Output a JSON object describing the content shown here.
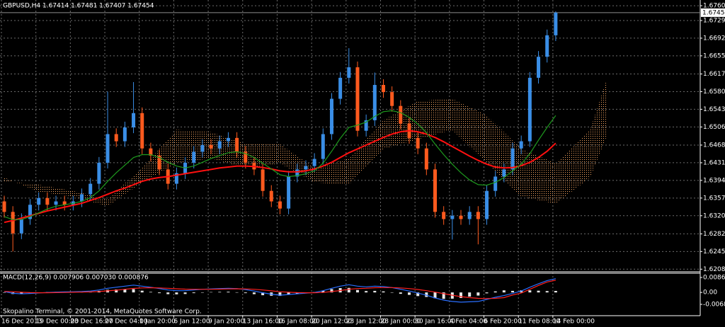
{
  "chart_data": [
    {
      "type": "candlestick",
      "title": "GBPUSD,H4  1.67414 1.67481 1.67407 1.67454",
      "footer": "Skopalino Terminal, © 2001-2014, MetaQuotes Software Corp.",
      "time_labels": [
        "16 Dec 2013",
        "19 Dec 00:00",
        "23 Dec 16:00",
        "27 Dec 04:00",
        "1 Jan 20:00",
        "6 Jan 12:00",
        "9 Jan 20:00",
        "13 Jan 16:00",
        "16 Jan 08:00",
        "20 Jan 12:00",
        "23 Jan 12:00",
        "28 Jan 00:00",
        "30 Jan 16:00",
        "4 Feb 04:00",
        "6 Feb 20:00",
        "11 Feb 08:00",
        "14 Feb 00:00"
      ],
      "up_color": "#3a8ee6",
      "down_color": "#ff5a1e",
      "open": [
        1.635,
        1.6328,
        1.6283,
        1.6313,
        1.6343,
        1.6357,
        1.6343,
        1.635,
        1.6343,
        1.635,
        1.6365,
        1.6387,
        1.6431,
        1.6491,
        1.6476,
        1.6505,
        1.6535,
        1.6461,
        1.6446,
        1.6417,
        1.6387,
        1.6409,
        1.6431,
        1.6454,
        1.6468,
        1.6461,
        1.6476,
        1.6483,
        1.6454,
        1.6431,
        1.6417,
        1.6372,
        1.635,
        1.6335,
        1.6402,
        1.6417,
        1.6424,
        1.6439,
        1.6491,
        1.6565,
        1.6609,
        1.6631,
        1.6498,
        1.652,
        1.6594,
        1.6579,
        1.655,
        1.6513,
        1.6483,
        1.6461,
        1.6417,
        1.6328,
        1.6313,
        1.632,
        1.6313,
        1.6328,
        1.6313,
        1.6372,
        1.6402,
        1.6417,
        1.6461,
        1.6476,
        1.6609,
        1.6653,
        1.6698
      ],
      "high": [
        1.6362,
        1.634,
        1.6325,
        1.6355,
        1.6369,
        1.6369,
        1.6362,
        1.6362,
        1.6362,
        1.6377,
        1.6399,
        1.6443,
        1.658,
        1.6503,
        1.6517,
        1.66,
        1.6547,
        1.6473,
        1.6458,
        1.6429,
        1.6421,
        1.6443,
        1.6466,
        1.648,
        1.648,
        1.6488,
        1.6495,
        1.6495,
        1.6466,
        1.6443,
        1.6429,
        1.6384,
        1.6362,
        1.6414,
        1.6429,
        1.6436,
        1.6451,
        1.6503,
        1.6577,
        1.6621,
        1.6671,
        1.6643,
        1.6532,
        1.662,
        1.6606,
        1.6591,
        1.6562,
        1.6525,
        1.6495,
        1.6473,
        1.6429,
        1.634,
        1.6332,
        1.6332,
        1.634,
        1.634,
        1.6384,
        1.6414,
        1.6429,
        1.6473,
        1.6488,
        1.6621,
        1.6665,
        1.671,
        1.67481
      ],
      "low": [
        1.6316,
        1.6245,
        1.6271,
        1.6301,
        1.6331,
        1.6331,
        1.6331,
        1.6331,
        1.6331,
        1.6338,
        1.6353,
        1.6375,
        1.6419,
        1.6464,
        1.6464,
        1.6493,
        1.6449,
        1.6434,
        1.6405,
        1.6375,
        1.6375,
        1.6397,
        1.6419,
        1.6442,
        1.6449,
        1.6449,
        1.6464,
        1.6442,
        1.6419,
        1.6405,
        1.636,
        1.6338,
        1.6323,
        1.6323,
        1.639,
        1.6405,
        1.6412,
        1.6427,
        1.6479,
        1.6553,
        1.6597,
        1.6486,
        1.6486,
        1.6508,
        1.6567,
        1.6538,
        1.6501,
        1.6471,
        1.6449,
        1.6405,
        1.6316,
        1.6301,
        1.627,
        1.6301,
        1.6301,
        1.626,
        1.6301,
        1.636,
        1.639,
        1.6405,
        1.6449,
        1.6464,
        1.6597,
        1.6641,
        1.6686
      ],
      "close": [
        1.6328,
        1.6283,
        1.6313,
        1.6343,
        1.6357,
        1.6343,
        1.635,
        1.6343,
        1.635,
        1.6365,
        1.6387,
        1.6431,
        1.6491,
        1.6476,
        1.6505,
        1.6535,
        1.6461,
        1.6446,
        1.6417,
        1.6387,
        1.6409,
        1.6431,
        1.6454,
        1.6468,
        1.6461,
        1.6476,
        1.6483,
        1.6454,
        1.6431,
        1.6417,
        1.6372,
        1.635,
        1.6335,
        1.6402,
        1.6417,
        1.6424,
        1.6439,
        1.6491,
        1.6565,
        1.6609,
        1.6631,
        1.6498,
        1.652,
        1.6594,
        1.6579,
        1.655,
        1.6513,
        1.6483,
        1.6461,
        1.6417,
        1.6328,
        1.6313,
        1.632,
        1.6313,
        1.6328,
        1.6313,
        1.6372,
        1.6402,
        1.6417,
        1.6461,
        1.6476,
        1.6609,
        1.6653,
        1.6698,
        1.67454
      ],
      "moving_averages": [
        {
          "color": "#ff1010",
          "values": [
            1.6306,
            1.631,
            1.6315,
            1.632,
            1.6325,
            1.633,
            1.6334,
            1.6338,
            1.6342,
            1.6346,
            1.6352,
            1.6358,
            1.6365,
            1.6372,
            1.6378,
            1.6385,
            1.6392,
            1.6397,
            1.64,
            1.6402,
            1.6405,
            1.6408,
            1.6411,
            1.6414,
            1.6417,
            1.642,
            1.6422,
            1.6424,
            1.6424,
            1.6423,
            1.6421,
            1.6418,
            1.6414,
            1.6412,
            1.6412,
            1.6414,
            1.6418,
            1.6424,
            1.6432,
            1.6442,
            1.6452,
            1.646,
            1.6468,
            1.6476,
            1.6484,
            1.6491,
            1.6496,
            1.6498,
            1.6496,
            1.6491,
            1.6484,
            1.6475,
            1.6465,
            1.6455,
            1.6445,
            1.6436,
            1.6428,
            1.6422,
            1.642,
            1.6421,
            1.6425,
            1.6432,
            1.6442,
            1.6455,
            1.6472
          ]
        },
        {
          "color": "#1e9a1e",
          "values": [
            1.6318,
            1.6312,
            1.6312,
            1.6318,
            1.6326,
            1.6334,
            1.634,
            1.6343,
            1.6346,
            1.635,
            1.6358,
            1.6372,
            1.6392,
            1.641,
            1.6426,
            1.6442,
            1.6448,
            1.6448,
            1.6442,
            1.6432,
            1.6424,
            1.642,
            1.6424,
            1.6432,
            1.644,
            1.6446,
            1.6452,
            1.6454,
            1.645,
            1.6442,
            1.643,
            1.6418,
            1.6406,
            1.6402,
            1.6404,
            1.6408,
            1.6414,
            1.643,
            1.6455,
            1.6482,
            1.6505,
            1.651,
            1.6516,
            1.6528,
            1.6538,
            1.654,
            1.6536,
            1.6526,
            1.6512,
            1.6494,
            1.647,
            1.6448,
            1.6428,
            1.641,
            1.6395,
            1.6385,
            1.6384,
            1.639,
            1.64,
            1.6414,
            1.6428,
            1.645,
            1.6478,
            1.6505,
            1.653
          ]
        }
      ],
      "cloud": {
        "color": "#f4a460",
        "x": [
          0,
          4,
          8,
          12,
          16,
          20,
          24,
          28,
          32,
          36,
          40,
          44,
          48,
          52,
          56,
          60,
          64,
          68,
          70
        ],
        "span_a": [
          1.6392,
          1.6385,
          1.6372,
          1.6355,
          1.642,
          1.65,
          1.6495,
          1.647,
          1.647,
          1.642,
          1.644,
          1.652,
          1.656,
          1.6565,
          1.653,
          1.646,
          1.643,
          1.65,
          1.661
        ],
        "span_b": [
          1.64,
          1.637,
          1.636,
          1.634,
          1.639,
          1.643,
          1.644,
          1.642,
          1.643,
          1.639,
          1.6385,
          1.646,
          1.648,
          1.65,
          1.643,
          1.636,
          1.6345,
          1.64,
          1.649
        ]
      },
      "last_price": 1.67454,
      "ylim": [
        1.6204,
        1.6769
      ],
      "yticks": [
        {
          "value": 1.676,
          "label": "1.67600"
        },
        {
          "value": 1.6729,
          "label": "1.67290"
        },
        {
          "value": 1.6692,
          "label": "1.66920"
        },
        {
          "value": 1.6655,
          "label": "1.66550"
        },
        {
          "value": 1.6617,
          "label": "1.66170"
        },
        {
          "value": 1.658,
          "label": "1.65800"
        },
        {
          "value": 1.6543,
          "label": "1.65430"
        },
        {
          "value": 1.6506,
          "label": "1.65060"
        },
        {
          "value": 1.6468,
          "label": "1.64680"
        },
        {
          "value": 1.6431,
          "label": "1.64310"
        },
        {
          "value": 1.6394,
          "label": "1.63940"
        },
        {
          "value": 1.6357,
          "label": "1.63570"
        },
        {
          "value": 1.632,
          "label": "1.63200"
        },
        {
          "value": 1.6282,
          "label": "1.62820"
        },
        {
          "value": 1.6245,
          "label": "1.62450"
        },
        {
          "value": 1.6208,
          "label": "1.62080"
        }
      ],
      "grid": true
    },
    {
      "type": "macd",
      "title": "MACD(12,26,9) 0.007906 0.007030 0.000876",
      "histogram_color": "#e8e8e8",
      "main_color": "#2a6fff",
      "signal_color": "#ff2020",
      "histogram": [
        -0.0001,
        -0.0009,
        -0.0009,
        -0.0005,
        -0.0001,
        0.0002,
        0.0003,
        0.0003,
        0.0003,
        0.0003,
        0.0005,
        0.0009,
        0.0015,
        0.0017,
        0.0018,
        0.0019,
        0.001,
        0.0003,
        -0.0004,
        -0.001,
        -0.0011,
        -0.0009,
        -0.0004,
        0,
        0.0002,
        0.0003,
        0.0004,
        0.0001,
        -0.0004,
        -0.001,
        -0.0016,
        -0.0019,
        -0.002,
        -0.0013,
        -0.0007,
        -0.0002,
        0.0002,
        0.001,
        0.0019,
        0.0025,
        0.0026,
        0.0014,
        0.0008,
        0.0009,
        0.0006,
        0,
        -0.0008,
        -0.0014,
        -0.0021,
        -0.0026,
        -0.0034,
        -0.0037,
        -0.0036,
        -0.0032,
        -0.0024,
        -0.0018,
        -0.0005,
        0.0006,
        0.0012,
        0.0009,
        0.0012,
        0.0012,
        0.001,
        0.0008,
        0.000876
      ],
      "main": [
        0.0005,
        -0.0005,
        -0.0008,
        -0.0006,
        -0.0003,
        0,
        0.0002,
        0.0003,
        0.0004,
        0.0005,
        0.0008,
        0.0014,
        0.0024,
        0.003,
        0.0036,
        0.0042,
        0.0036,
        0.003,
        0.0022,
        0.0014,
        0.001,
        0.001,
        0.0014,
        0.0018,
        0.002,
        0.0022,
        0.0024,
        0.0022,
        0.0016,
        0.0008,
        -0.0002,
        -0.001,
        -0.0016,
        -0.0012,
        -0.0008,
        -0.0004,
        0,
        0.001,
        0.0024,
        0.0036,
        0.0044,
        0.0036,
        0.0032,
        0.0036,
        0.0034,
        0.0028,
        0.0018,
        0.0008,
        -0.0004,
        -0.0016,
        -0.0032,
        -0.0044,
        -0.0052,
        -0.0056,
        -0.0054,
        -0.0052,
        -0.004,
        -0.0028,
        -0.0018,
        -0.0006,
        0.0008,
        0.003,
        0.005,
        0.0068,
        0.007906
      ],
      "signal": [
        0.0006,
        0.0004,
        0.0001,
        -0.0001,
        -0.0002,
        -0.0002,
        -0.0001,
        0,
        0.0001,
        0.0002,
        0.0003,
        0.0005,
        0.0009,
        0.0013,
        0.0018,
        0.0023,
        0.0026,
        0.0027,
        0.0026,
        0.0024,
        0.0021,
        0.0019,
        0.0018,
        0.0018,
        0.0018,
        0.0019,
        0.002,
        0.0021,
        0.002,
        0.0018,
        0.0014,
        0.0009,
        0.0004,
        0.0001,
        -0.0001,
        -0.0002,
        -0.0002,
        0,
        0.0005,
        0.0011,
        0.0018,
        0.0022,
        0.0024,
        0.0027,
        0.0028,
        0.0028,
        0.0026,
        0.0022,
        0.0017,
        0.001,
        0.0002,
        -0.0007,
        -0.0016,
        -0.0024,
        -0.003,
        -0.0034,
        -0.0035,
        -0.0034,
        -0.003,
        -0.0015,
        -0.0004,
        0.0018,
        0.004,
        0.006,
        0.00703
      ],
      "ylim": [
        -0.006854,
        0.008609
      ],
      "yticks": [
        0.008609,
        {
          "value": 0,
          "label": "0.00"
        },
        -0.006854
      ]
    }
  ]
}
